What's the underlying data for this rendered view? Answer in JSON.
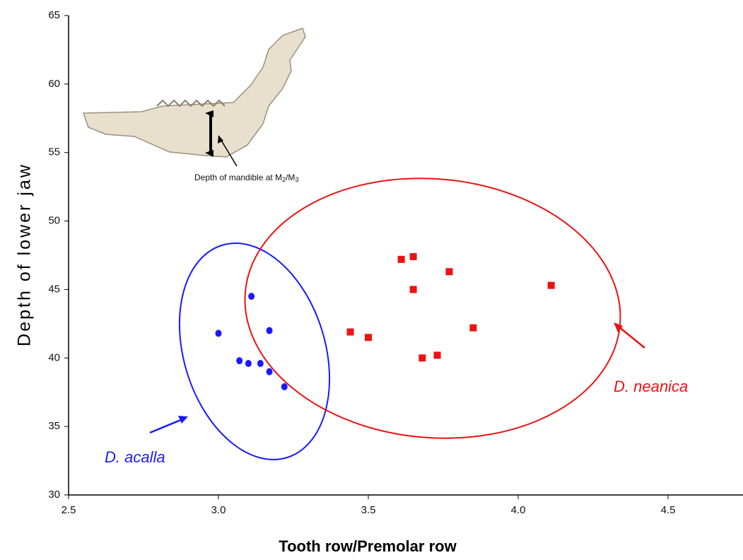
{
  "chart_data": {
    "type": "scatter",
    "xlabel": "Tooth row/Premolar row",
    "ylabel": "Depth of lower jaw",
    "mandible_label": [
      "Depth of mandible at M",
      "2",
      "/M",
      "3"
    ],
    "xlim": [
      2.5,
      4.75
    ],
    "ylim": [
      30,
      65
    ],
    "xticks": [
      2.5,
      {
        "value": 3,
        "label": "3.0"
      },
      3.5,
      {
        "value": 4,
        "label": "4.0"
      },
      4.5
    ],
    "yticks": [
      30,
      35,
      40,
      45,
      50,
      55,
      60,
      65
    ],
    "series": [
      {
        "name": "D. acalla",
        "color": "#1a1aff",
        "marker": "circle",
        "x": [
          3.0,
          3.11,
          3.17,
          3.07,
          3.1,
          3.14,
          3.17,
          3.22
        ],
        "values": [
          41.8,
          44.5,
          42.0,
          39.8,
          39.6,
          39.6,
          39.0,
          37.9
        ]
      },
      {
        "name": "D. neanica",
        "color": "#ee1111",
        "marker": "square",
        "x": [
          3.61,
          3.65,
          3.77,
          3.65,
          4.11,
          3.44,
          3.5,
          3.85,
          3.68,
          3.73
        ],
        "values": [
          47.2,
          47.4,
          46.3,
          45.0,
          45.3,
          41.9,
          41.5,
          42.2,
          40.0,
          40.2
        ]
      }
    ]
  }
}
